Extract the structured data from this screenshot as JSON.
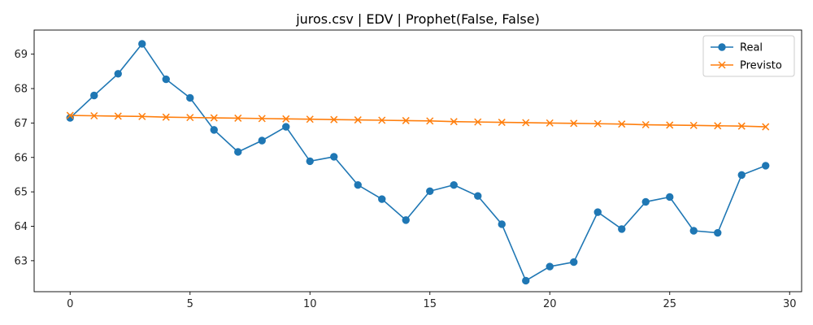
{
  "chart_data": {
    "type": "line",
    "title": "juros.csv | EDV | Prophet(False, False)",
    "xlabel": "",
    "ylabel": "",
    "xlim": [
      -1.5,
      30.5
    ],
    "ylim": [
      62.1,
      69.7
    ],
    "xticks": [
      0,
      5,
      10,
      15,
      20,
      25,
      30
    ],
    "yticks": [
      63,
      64,
      65,
      66,
      67,
      68,
      69
    ],
    "grid": false,
    "legend_position": "top-right",
    "x": [
      0,
      1,
      2,
      3,
      4,
      5,
      6,
      7,
      8,
      9,
      10,
      11,
      12,
      13,
      14,
      15,
      16,
      17,
      18,
      19,
      20,
      21,
      22,
      23,
      24,
      25,
      26,
      27,
      28,
      29
    ],
    "series": [
      {
        "name": "Real",
        "color": "#1f77b4",
        "marker": "circle",
        "values": [
          67.15,
          67.8,
          68.43,
          69.3,
          68.27,
          67.73,
          66.8,
          66.16,
          66.49,
          66.89,
          65.89,
          66.02,
          65.2,
          64.79,
          64.18,
          65.02,
          65.2,
          64.88,
          64.06,
          62.42,
          62.83,
          62.96,
          64.41,
          63.92,
          64.71,
          64.85,
          63.87,
          63.81,
          65.49,
          65.76
        ]
      },
      {
        "name": "Previsto",
        "color": "#ff7f0e",
        "marker": "x",
        "values": [
          67.22,
          67.21,
          67.2,
          67.19,
          67.17,
          67.16,
          67.15,
          67.14,
          67.13,
          67.12,
          67.11,
          67.1,
          67.09,
          67.08,
          67.07,
          67.06,
          67.04,
          67.03,
          67.02,
          67.01,
          67.0,
          66.99,
          66.98,
          66.97,
          66.95,
          66.94,
          66.93,
          66.92,
          66.91,
          66.89
        ]
      }
    ]
  }
}
